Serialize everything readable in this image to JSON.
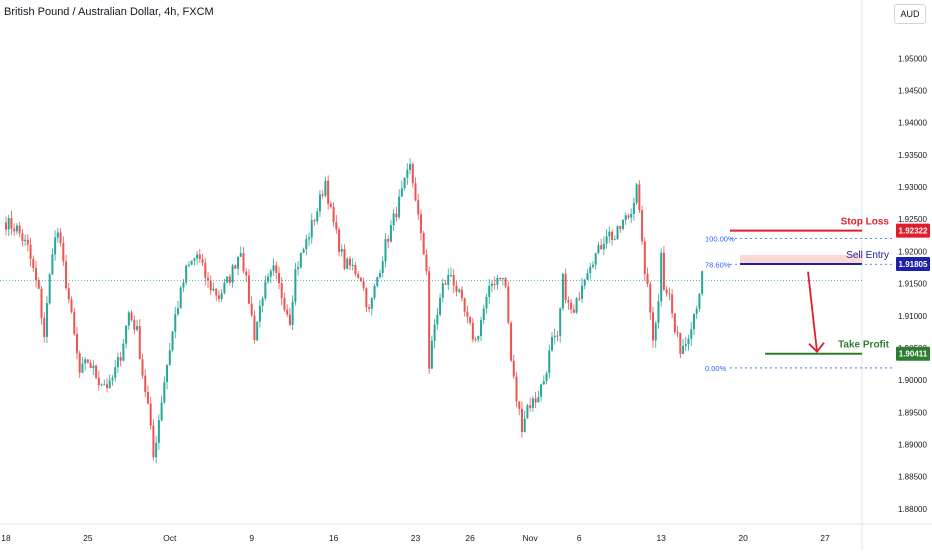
{
  "chart_data": {
    "type": "candlestick",
    "title": "British Pound / Australian Dollar, 4h, FXCM",
    "currency": "AUD",
    "ylim": [
      1.8775,
      1.9575
    ],
    "x_ticks": [
      {
        "label": "18",
        "bar": 0
      },
      {
        "label": "25",
        "bar": 30
      },
      {
        "label": "Oct",
        "bar": 60
      },
      {
        "label": "9",
        "bar": 90
      },
      {
        "label": "16",
        "bar": 120
      },
      {
        "label": "23",
        "bar": 150
      },
      {
        "label": "26",
        "bar": 170
      },
      {
        "label": "Nov",
        "bar": 192
      },
      {
        "label": "6",
        "bar": 210
      },
      {
        "label": "13",
        "bar": 240
      },
      {
        "label": "20",
        "bar": 270
      },
      {
        "label": "27",
        "bar": 300
      }
    ],
    "y_ticks": [
      "1.95000",
      "1.94500",
      "1.94000",
      "1.93500",
      "1.93000",
      "1.92500",
      "1.92000",
      "1.91500",
      "1.91000",
      "1.90500",
      "1.90000",
      "1.89500",
      "1.89000",
      "1.88500",
      "1.88000"
    ],
    "colors": {
      "up": "#26a69a",
      "down": "#ef5350",
      "stop": "#e11d2b",
      "entry": "#1d20a8",
      "profit": "#2e7d32",
      "fib": "#2962ff"
    },
    "last_price": 1.9155,
    "path": [
      [
        0,
        1.9245
      ],
      [
        4,
        1.9235
      ],
      [
        8,
        1.9205
      ],
      [
        12,
        1.9135
      ],
      [
        14,
        1.907
      ],
      [
        17,
        1.9205
      ],
      [
        19,
        1.923
      ],
      [
        23,
        1.9125
      ],
      [
        27,
        1.901
      ],
      [
        30,
        1.903
      ],
      [
        34,
        1.9
      ],
      [
        38,
        1.899
      ],
      [
        42,
        1.904
      ],
      [
        45,
        1.9105
      ],
      [
        48,
        1.9075
      ],
      [
        50,
        1.901
      ],
      [
        52,
        1.896
      ],
      [
        54,
        1.888
      ],
      [
        56,
        1.894
      ],
      [
        58,
        1.9
      ],
      [
        62,
        1.91
      ],
      [
        66,
        1.917
      ],
      [
        70,
        1.9195
      ],
      [
        74,
        1.915
      ],
      [
        78,
        1.913
      ],
      [
        82,
        1.916
      ],
      [
        86,
        1.9205
      ],
      [
        89,
        1.9125
      ],
      [
        91,
        1.907
      ],
      [
        94,
        1.9135
      ],
      [
        98,
        1.917
      ],
      [
        102,
        1.912
      ],
      [
        104,
        1.9095
      ],
      [
        106,
        1.917
      ],
      [
        110,
        1.9215
      ],
      [
        114,
        1.9265
      ],
      [
        117,
        1.931
      ],
      [
        119,
        1.926
      ],
      [
        121,
        1.9225
      ],
      [
        124,
        1.918
      ],
      [
        127,
        1.9175
      ],
      [
        130,
        1.916
      ],
      [
        133,
        1.9105
      ],
      [
        136,
        1.916
      ],
      [
        139,
        1.921
      ],
      [
        142,
        1.925
      ],
      [
        145,
        1.929
      ],
      [
        148,
        1.933
      ],
      [
        150,
        1.9285
      ],
      [
        152,
        1.922
      ],
      [
        154,
        1.9175
      ],
      [
        155,
        1.902
      ],
      [
        157,
        1.9085
      ],
      [
        160,
        1.9145
      ],
      [
        163,
        1.9165
      ],
      [
        166,
        1.913
      ],
      [
        169,
        1.909
      ],
      [
        172,
        1.906
      ],
      [
        175,
        1.911
      ],
      [
        178,
        1.915
      ],
      [
        181,
        1.9165
      ],
      [
        183,
        1.9145
      ],
      [
        185,
        1.903
      ],
      [
        187,
        1.897
      ],
      [
        189,
        1.893
      ],
      [
        191,
        1.896
      ],
      [
        194,
        1.897
      ],
      [
        197,
        1.9
      ],
      [
        200,
        1.906
      ],
      [
        202,
        1.906
      ],
      [
        204,
        1.9155
      ],
      [
        206,
        1.9115
      ],
      [
        208,
        1.91
      ],
      [
        211,
        1.9155
      ],
      [
        214,
        1.9185
      ],
      [
        217,
        1.92
      ],
      [
        220,
        1.923
      ],
      [
        223,
        1.922
      ],
      [
        226,
        1.9245
      ],
      [
        229,
        1.926
      ],
      [
        231,
        1.931
      ],
      [
        233,
        1.9205
      ],
      [
        235,
        1.914
      ],
      [
        237,
        1.907
      ],
      [
        239,
        1.912
      ],
      [
        240,
        1.9205
      ],
      [
        241,
        1.915
      ],
      [
        243,
        1.913
      ],
      [
        245,
        1.9075
      ],
      [
        247,
        1.905
      ],
      [
        249,
        1.906
      ],
      [
        251,
        1.909
      ],
      [
        253,
        1.912
      ],
      [
        255,
        1.916
      ]
    ]
  },
  "annotations": {
    "stop_loss": {
      "label": "Stop Loss",
      "price_label": "1.92322",
      "price": 1.92322
    },
    "sell_entry": {
      "label": "Sell Entry",
      "price_label": "1.91805",
      "price": 1.91805
    },
    "take_profit": {
      "label": "Take Profit",
      "price_label": "1.90411",
      "price": 1.90411
    },
    "fib_top": {
      "label": "100.00%",
      "price": 1.922
    },
    "fib_786": {
      "label": "78.60%",
      "price": 1.918
    },
    "fib_bottom": {
      "label": "0.00%",
      "price": 1.9019
    }
  }
}
